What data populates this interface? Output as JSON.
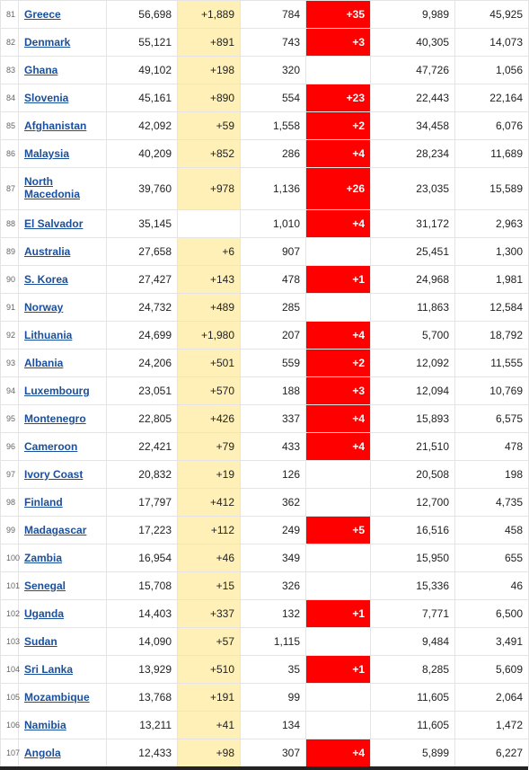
{
  "rows": [
    {
      "rank": "81",
      "country": "Greece",
      "total_cases": "56,698",
      "new_cases": "+1,889",
      "total_deaths": "784",
      "new_deaths": "+35",
      "total_recovered": "9,989",
      "active_cases": "45,925"
    },
    {
      "rank": "82",
      "country": "Denmark",
      "total_cases": "55,121",
      "new_cases": "+891",
      "total_deaths": "743",
      "new_deaths": "+3",
      "total_recovered": "40,305",
      "active_cases": "14,073"
    },
    {
      "rank": "83",
      "country": "Ghana",
      "total_cases": "49,102",
      "new_cases": "+198",
      "total_deaths": "320",
      "new_deaths": "",
      "total_recovered": "47,726",
      "active_cases": "1,056"
    },
    {
      "rank": "84",
      "country": "Slovenia",
      "total_cases": "45,161",
      "new_cases": "+890",
      "total_deaths": "554",
      "new_deaths": "+23",
      "total_recovered": "22,443",
      "active_cases": "22,164"
    },
    {
      "rank": "85",
      "country": "Afghanistan",
      "total_cases": "42,092",
      "new_cases": "+59",
      "total_deaths": "1,558",
      "new_deaths": "+2",
      "total_recovered": "34,458",
      "active_cases": "6,076"
    },
    {
      "rank": "86",
      "country": "Malaysia",
      "total_cases": "40,209",
      "new_cases": "+852",
      "total_deaths": "286",
      "new_deaths": "+4",
      "total_recovered": "28,234",
      "active_cases": "11,689"
    },
    {
      "rank": "87",
      "country": "North Macedonia",
      "total_cases": "39,760",
      "new_cases": "+978",
      "total_deaths": "1,136",
      "new_deaths": "+26",
      "total_recovered": "23,035",
      "active_cases": "15,589"
    },
    {
      "rank": "88",
      "country": "El Salvador",
      "total_cases": "35,145",
      "new_cases": "",
      "total_deaths": "1,010",
      "new_deaths": "+4",
      "total_recovered": "31,172",
      "active_cases": "2,963"
    },
    {
      "rank": "89",
      "country": "Australia",
      "total_cases": "27,658",
      "new_cases": "+6",
      "total_deaths": "907",
      "new_deaths": "",
      "total_recovered": "25,451",
      "active_cases": "1,300"
    },
    {
      "rank": "90",
      "country": "S. Korea",
      "total_cases": "27,427",
      "new_cases": "+143",
      "total_deaths": "478",
      "new_deaths": "+1",
      "total_recovered": "24,968",
      "active_cases": "1,981"
    },
    {
      "rank": "91",
      "country": "Norway",
      "total_cases": "24,732",
      "new_cases": "+489",
      "total_deaths": "285",
      "new_deaths": "",
      "total_recovered": "11,863",
      "active_cases": "12,584"
    },
    {
      "rank": "92",
      "country": "Lithuania",
      "total_cases": "24,699",
      "new_cases": "+1,980",
      "total_deaths": "207",
      "new_deaths": "+4",
      "total_recovered": "5,700",
      "active_cases": "18,792"
    },
    {
      "rank": "93",
      "country": "Albania",
      "total_cases": "24,206",
      "new_cases": "+501",
      "total_deaths": "559",
      "new_deaths": "+2",
      "total_recovered": "12,092",
      "active_cases": "11,555"
    },
    {
      "rank": "94",
      "country": "Luxembourg",
      "total_cases": "23,051",
      "new_cases": "+570",
      "total_deaths": "188",
      "new_deaths": "+3",
      "total_recovered": "12,094",
      "active_cases": "10,769"
    },
    {
      "rank": "95",
      "country": "Montenegro",
      "total_cases": "22,805",
      "new_cases": "+426",
      "total_deaths": "337",
      "new_deaths": "+4",
      "total_recovered": "15,893",
      "active_cases": "6,575"
    },
    {
      "rank": "96",
      "country": "Cameroon",
      "total_cases": "22,421",
      "new_cases": "+79",
      "total_deaths": "433",
      "new_deaths": "+4",
      "total_recovered": "21,510",
      "active_cases": "478"
    },
    {
      "rank": "97",
      "country": "Ivory Coast",
      "total_cases": "20,832",
      "new_cases": "+19",
      "total_deaths": "126",
      "new_deaths": "",
      "total_recovered": "20,508",
      "active_cases": "198"
    },
    {
      "rank": "98",
      "country": "Finland",
      "total_cases": "17,797",
      "new_cases": "+412",
      "total_deaths": "362",
      "new_deaths": "",
      "total_recovered": "12,700",
      "active_cases": "4,735"
    },
    {
      "rank": "99",
      "country": "Madagascar",
      "total_cases": "17,223",
      "new_cases": "+112",
      "total_deaths": "249",
      "new_deaths": "+5",
      "total_recovered": "16,516",
      "active_cases": "458"
    },
    {
      "rank": "100",
      "country": "Zambia",
      "total_cases": "16,954",
      "new_cases": "+46",
      "total_deaths": "349",
      "new_deaths": "",
      "total_recovered": "15,950",
      "active_cases": "655"
    },
    {
      "rank": "101",
      "country": "Senegal",
      "total_cases": "15,708",
      "new_cases": "+15",
      "total_deaths": "326",
      "new_deaths": "",
      "total_recovered": "15,336",
      "active_cases": "46"
    },
    {
      "rank": "102",
      "country": "Uganda",
      "total_cases": "14,403",
      "new_cases": "+337",
      "total_deaths": "132",
      "new_deaths": "+1",
      "total_recovered": "7,771",
      "active_cases": "6,500"
    },
    {
      "rank": "103",
      "country": "Sudan",
      "total_cases": "14,090",
      "new_cases": "+57",
      "total_deaths": "1,115",
      "new_deaths": "",
      "total_recovered": "9,484",
      "active_cases": "3,491"
    },
    {
      "rank": "104",
      "country": "Sri Lanka",
      "total_cases": "13,929",
      "new_cases": "+510",
      "total_deaths": "35",
      "new_deaths": "+1",
      "total_recovered": "8,285",
      "active_cases": "5,609"
    },
    {
      "rank": "105",
      "country": "Mozambique",
      "total_cases": "13,768",
      "new_cases": "+191",
      "total_deaths": "99",
      "new_deaths": "",
      "total_recovered": "11,605",
      "active_cases": "2,064"
    },
    {
      "rank": "106",
      "country": "Namibia",
      "total_cases": "13,211",
      "new_cases": "+41",
      "total_deaths": "134",
      "new_deaths": "",
      "total_recovered": "11,605",
      "active_cases": "1,472"
    },
    {
      "rank": "107",
      "country": "Angola",
      "total_cases": "12,433",
      "new_cases": "+98",
      "total_deaths": "307",
      "new_deaths": "+4",
      "total_recovered": "5,899",
      "active_cases": "6,227"
    }
  ],
  "colors": {
    "new_cases_bg": "#fff0b8",
    "new_deaths_bg": "#ff0000",
    "link": "#1a4f9c"
  }
}
